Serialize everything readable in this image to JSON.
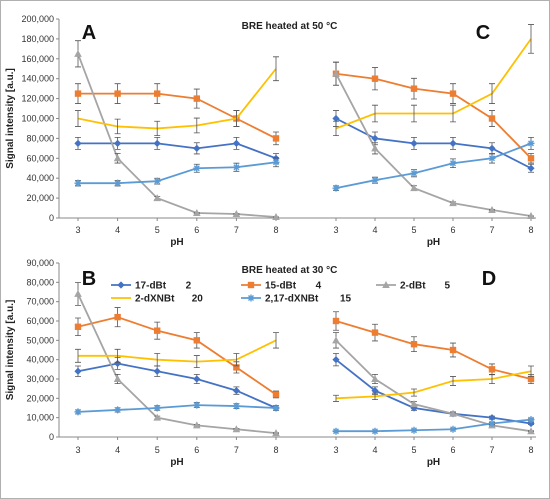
{
  "chart_data": [
    {
      "type": "line",
      "title": "BRE heated at 50 °C",
      "xlabel": "pH",
      "ylabel": "Signal intensity [a.u.]",
      "yticks": [
        "0",
        "20,000",
        "40,000",
        "60,000",
        "80,000",
        "100,000",
        "120,000",
        "140,000",
        "160,000",
        "180,000",
        "200,000"
      ],
      "ylim": [
        0,
        200000
      ],
      "grid": false,
      "panels": [
        {
          "letter": "A",
          "x": [
            3,
            4,
            5,
            6,
            7,
            8
          ],
          "series": [
            {
              "name": "17-dBt",
              "values": [
                75000,
                75000,
                75000,
                70000,
                75000,
                60000
              ]
            },
            {
              "name": "15-dBt",
              "values": [
                125000,
                125000,
                125000,
                120000,
                100000,
                80000
              ]
            },
            {
              "name": "2-dBt",
              "values": [
                165000,
                60000,
                20000,
                5000,
                4000,
                1000
              ]
            },
            {
              "name": "2-dXNBt",
              "values": [
                100000,
                92000,
                90000,
                93000,
                100000,
                150000
              ]
            },
            {
              "name": "2,17-dXNBt",
              "values": [
                35000,
                35000,
                37000,
                50000,
                51000,
                56000
              ]
            }
          ]
        },
        {
          "letter": "C",
          "x": [
            3,
            4,
            5,
            6,
            7,
            8
          ],
          "series": [
            {
              "name": "17-dBt",
              "values": [
                100000,
                80000,
                75000,
                75000,
                70000,
                50000
              ]
            },
            {
              "name": "15-dBt",
              "values": [
                145000,
                140000,
                130000,
                125000,
                100000,
                60000
              ]
            },
            {
              "name": "2-dBt",
              "values": [
                145000,
                70000,
                30000,
                15000,
                8000,
                2000
              ]
            },
            {
              "name": "2-dXNBt",
              "values": [
                90000,
                105000,
                105000,
                105000,
                125000,
                180000
              ]
            },
            {
              "name": "2,17-dXNBt",
              "values": [
                30000,
                38000,
                45000,
                55000,
                60000,
                75000
              ]
            }
          ]
        }
      ]
    },
    {
      "type": "line",
      "title": "BRE heated at 30 °C",
      "xlabel": "pH",
      "ylabel": "Signal intensity [a.u.]",
      "yticks": [
        "0",
        "10,000",
        "20,000",
        "30,000",
        "40,000",
        "50,000",
        "60,000",
        "70,000",
        "80,000",
        "90,000"
      ],
      "ylim": [
        0,
        90000
      ],
      "grid": false,
      "panels": [
        {
          "letter": "B",
          "x": [
            3,
            4,
            5,
            6,
            7,
            8
          ],
          "series": [
            {
              "name": "17-dBt",
              "values": [
                34000,
                38000,
                34000,
                30000,
                24000,
                15000
              ]
            },
            {
              "name": "15-dBt",
              "values": [
                57000,
                62000,
                55000,
                50000,
                36000,
                22000
              ]
            },
            {
              "name": "2-dBt",
              "values": [
                74000,
                30000,
                10000,
                6000,
                4000,
                2000
              ]
            },
            {
              "name": "2-dXNBt",
              "values": [
                42000,
                42000,
                40000,
                39000,
                40000,
                50000
              ]
            },
            {
              "name": "2,17-dXNBt",
              "values": [
                13000,
                14000,
                15000,
                16500,
                16000,
                15000
              ]
            }
          ]
        },
        {
          "letter": "D",
          "x": [
            3,
            4,
            5,
            6,
            7,
            8
          ],
          "series": [
            {
              "name": "17-dBt",
              "values": [
                40000,
                24000,
                15000,
                12000,
                10000,
                7000
              ]
            },
            {
              "name": "15-dBt",
              "values": [
                60000,
                54000,
                48000,
                45000,
                35000,
                30000
              ]
            },
            {
              "name": "2-dBt",
              "values": [
                50000,
                30000,
                17000,
                12000,
                6000,
                3000
              ]
            },
            {
              "name": "2-dXNBt",
              "values": [
                20000,
                21000,
                23000,
                29000,
                30000,
                34000
              ]
            },
            {
              "name": "2,17-dXNBt",
              "values": [
                3000,
                3000,
                3500,
                4000,
                7000,
                9000
              ]
            }
          ]
        }
      ]
    }
  ],
  "legend": {
    "placement": "top-center",
    "items": [
      {
        "name": "17-dBt",
        "count": "2",
        "color": "#4472C4",
        "marker": "diamond"
      },
      {
        "name": "15-dBt",
        "count": "4",
        "color": "#ED7D31",
        "marker": "square"
      },
      {
        "name": "2-dBt",
        "count": "5",
        "color": "#A5A5A5",
        "marker": "triangle"
      },
      {
        "name": "2-dXNBt",
        "count": "20",
        "color": "#FFC000",
        "marker": "none"
      },
      {
        "name": "2,17-dXNBt",
        "count": "15",
        "color": "#5B9BD5",
        "marker": "star"
      }
    ]
  },
  "series_colors": {
    "17-dBt": "#4472C4",
    "15-dBt": "#ED7D31",
    "2-dBt": "#A5A5A5",
    "2-dXNBt": "#FFC000",
    "2,17-dXNBt": "#5B9BD5"
  },
  "error_fraction": 0.08
}
